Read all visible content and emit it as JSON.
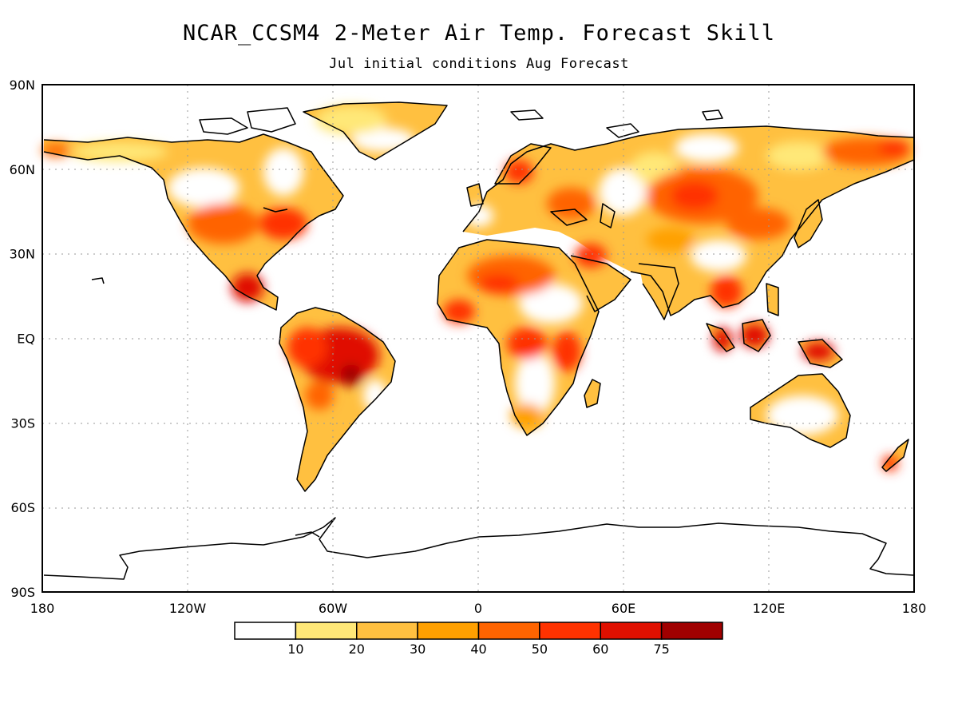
{
  "title": "NCAR_CCSM4 2-Meter Air Temp. Forecast Skill",
  "subtitle": "Jul initial conditions  Aug Forecast",
  "chart_data": {
    "type": "heatmap",
    "x_ticks": [
      "180",
      "120W",
      "60W",
      "0",
      "60E",
      "120E",
      "180"
    ],
    "y_ticks": [
      "90N",
      "60N",
      "30N",
      "EQ",
      "30S",
      "60S",
      "90S"
    ],
    "xlim": [
      -180,
      180
    ],
    "ylim": [
      -90,
      90
    ],
    "grid": "dotted",
    "colorbar": {
      "placement": "bottom",
      "bins": [
        {
          "label": "",
          "color": "#ffffff"
        },
        {
          "label": "10",
          "color": "#ffe878"
        },
        {
          "label": "20",
          "color": "#ffc040"
        },
        {
          "label": "30",
          "color": "#ffa000"
        },
        {
          "label": "40",
          "color": "#ff6400"
        },
        {
          "label": "50",
          "color": "#ff3200"
        },
        {
          "label": "60",
          "color": "#e01000"
        },
        {
          "label": "75",
          "color": "#a00000"
        }
      ]
    }
  }
}
